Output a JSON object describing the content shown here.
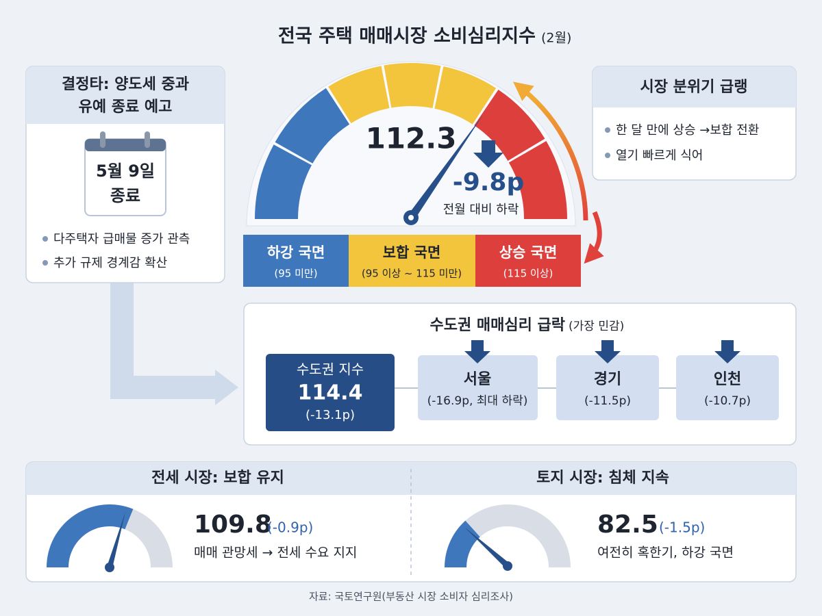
{
  "header": {
    "title": "전국 주택 매매시장 소비심리지수",
    "period": "(2월)"
  },
  "left_card": {
    "title_lines": [
      "결정타: 양도세 중과",
      "유예 종료 예고"
    ],
    "calendar_lines": [
      "5월 9일",
      "종료"
    ],
    "bullets": [
      "다주택자 급매물 증가 관측",
      "추가 규제 경계감 확산"
    ]
  },
  "gauge": {
    "value": "112.3",
    "change": "-9.8p",
    "change_label": "전월 대비 하락",
    "zones": [
      {
        "label": "하강 국면",
        "range": "(95 미만)"
      },
      {
        "label": "보합 국면",
        "range": "(95 이상 ~ 115 미만)"
      },
      {
        "label": "상승 국면",
        "range": "(115 이상)"
      }
    ]
  },
  "right_card": {
    "title": "시장 분위기 급랭",
    "bullets": [
      "한 달 만에 상승 →보합 전환",
      "열기 빠르게 식어"
    ]
  },
  "metro": {
    "title": "수도권 매매심리 급락",
    "note": "(가장 민감)",
    "index": {
      "label": "수도권 지수",
      "value": "114.4",
      "change": "(-13.1p)"
    },
    "regions": [
      {
        "name": "서울",
        "change": "(-16.9p, 최대 하락)"
      },
      {
        "name": "경기",
        "change": "(-11.5p)"
      },
      {
        "name": "인천",
        "change": "(-10.7p)"
      }
    ]
  },
  "bottom": [
    {
      "title": "전세 시장: 보합 유지",
      "value": "109.8",
      "change": "(-0.9p)",
      "note": "매매 관망세 → 전세 수요 지지"
    },
    {
      "title": "토지 시장: 침체 지속",
      "value": "82.5",
      "change": "(-1.5p)",
      "note": "여전히 혹한기, 하강 국면"
    }
  ],
  "footer": {
    "source": "자료: 국토연구원(부동산 시장 소비자 심리조사)"
  }
}
